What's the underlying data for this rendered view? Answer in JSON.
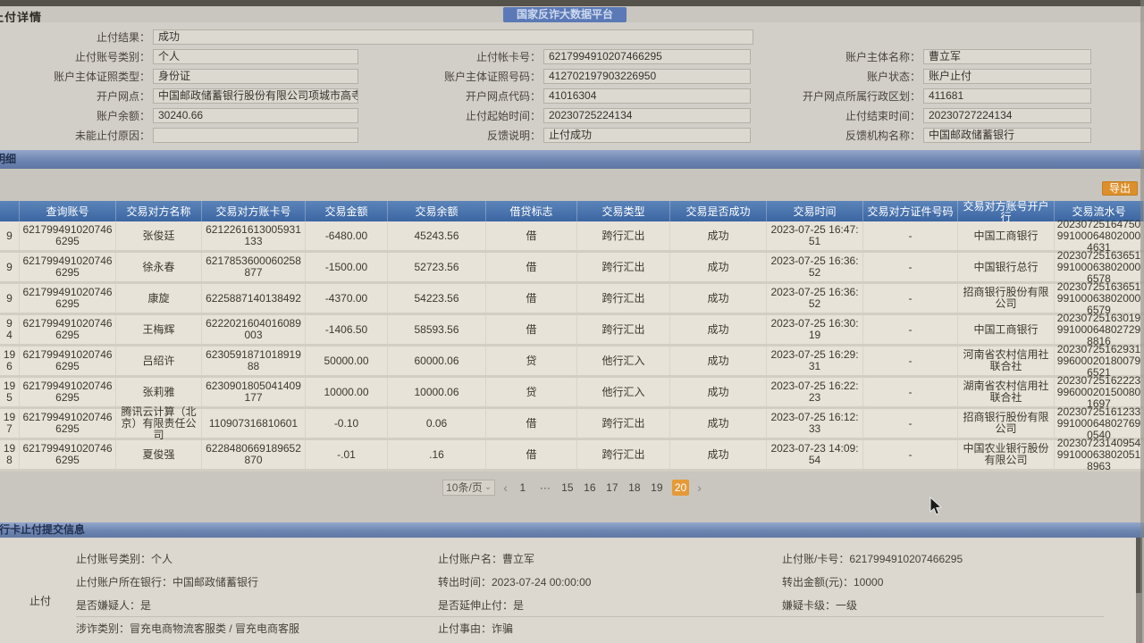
{
  "header": {
    "page_title": "止付详情",
    "platform_title": "国家反诈大数据平台"
  },
  "detail": {
    "rows": [
      [
        {
          "label": "止付结果：",
          "value": "成功"
        }
      ],
      [
        {
          "label": "止付账号类别：",
          "value": "个人"
        },
        {
          "label": "止付帐卡号：",
          "value": "6217994910207466295"
        },
        {
          "label": "账户主体名称：",
          "value": "曹立军"
        }
      ],
      [
        {
          "label": "账户主体证照类型：",
          "value": "身份证"
        },
        {
          "label": "账户主体证照号码：",
          "value": "412702197903226950"
        },
        {
          "label": "账户状态：",
          "value": "账户止付"
        }
      ],
      [
        {
          "label": "开户网点：",
          "value": "中国邮政储蓄银行股份有限公司项城市高寺..."
        },
        {
          "label": "开户网点代码：",
          "value": "41016304"
        },
        {
          "label": "开户网点所属行政区划：",
          "value": "411681"
        }
      ],
      [
        {
          "label": "账户余额：",
          "value": "30240.66"
        },
        {
          "label": "止付起始时间：",
          "value": "20230725224134"
        },
        {
          "label": "止付结束时间：",
          "value": "20230727224134"
        }
      ],
      [
        {
          "label": "未能止付原因：",
          "value": ""
        },
        {
          "label": "反馈说明：",
          "value": "止付成功"
        },
        {
          "label": "反馈机构名称：",
          "value": "中国邮政储蓄银行"
        }
      ]
    ]
  },
  "transactions": {
    "section_title": "明细",
    "export_label": "导出",
    "columns": [
      "查询账号",
      "交易对方名称",
      "交易对方账卡号",
      "交易金额",
      "交易余额",
      "借贷标志",
      "交易类型",
      "交易是否成功",
      "交易时间",
      "交易对方证件号码",
      "交易对方账号开户行",
      "交易流水号"
    ],
    "partial_ids": [
      "9",
      "9",
      "9",
      "9\n4",
      "19\n6",
      "19\n5",
      "19\n7",
      "19\n8"
    ],
    "rows": [
      [
        "6217994910207466295",
        "张俊廷",
        "6212261613005931133",
        "-6480.00",
        "45243.56",
        "借",
        "跨行汇出",
        "成功",
        "2023-07-25 16:47:51",
        "-",
        "中国工商银行",
        "20230725164750991000648020004631"
      ],
      [
        "6217994910207466295",
        "徐永春",
        "6217853600060258877",
        "-1500.00",
        "52723.56",
        "借",
        "跨行汇出",
        "成功",
        "2023-07-25 16:36:52",
        "-",
        "中国银行总行",
        "20230725163651991000638020006578"
      ],
      [
        "6217994910207466295",
        "康旋",
        "6225887140138492",
        "-4370.00",
        "54223.56",
        "借",
        "跨行汇出",
        "成功",
        "2023-07-25 16:36:52",
        "-",
        "招商银行股份有限公司",
        "20230725163651991000638020006579"
      ],
      [
        "6217994910207466295",
        "王梅辉",
        "6222021604016089003",
        "-1406.50",
        "58593.56",
        "借",
        "跨行汇出",
        "成功",
        "2023-07-25 16:30:19",
        "-",
        "中国工商银行",
        "20230725163019991000648027298816"
      ],
      [
        "6217994910207466295",
        "吕绍许",
        "623059187101891988",
        "50000.00",
        "60000.06",
        "贷",
        "他行汇入",
        "成功",
        "2023-07-25 16:29:31",
        "-",
        "河南省农村信用社联合社",
        "20230725162931996000201800796521"
      ],
      [
        "6217994910207466295",
        "张莉雅",
        "6230901805041409177",
        "10000.00",
        "10000.06",
        "贷",
        "他行汇入",
        "成功",
        "2023-07-25 16:22:23",
        "-",
        "湖南省农村信用社联合社",
        "20230725162223996000201500801697"
      ],
      [
        "6217994910207466295",
        "腾讯云计算（北京）有限责任公司",
        "110907316810601",
        "-0.10",
        "0.06",
        "借",
        "跨行汇出",
        "成功",
        "2023-07-25 16:12:33",
        "-",
        "招商银行股份有限公司",
        "20230725161233991000648027690540"
      ],
      [
        "6217994910207466295",
        "夏俊强",
        "6228480669189652870",
        "-.01",
        ".16",
        "借",
        "跨行汇出",
        "成功",
        "2023-07-23 14:09:54",
        "-",
        "中国农业银行股份有限公司",
        "20230723140954991000638020518963"
      ]
    ],
    "pagination": {
      "page_size_label": "10条/页",
      "prev": "‹",
      "next": "›",
      "pages": [
        "1",
        "···",
        "15",
        "16",
        "17",
        "18",
        "19",
        "20"
      ],
      "active_page": "20"
    }
  },
  "submission": {
    "section_title": "银行卡止付提交信息",
    "group_label": "止付",
    "rows": [
      [
        {
          "label": "止付账号类别",
          "value": "个人"
        },
        {
          "label": "止付账户名",
          "value": "曹立军"
        },
        {
          "label": "止付账/卡号",
          "value": "6217994910207466295"
        }
      ],
      [
        {
          "label": "止付账户所在银行",
          "value": "中国邮政储蓄银行"
        },
        {
          "label": "转出时间",
          "value": "2023-07-24 00:00:00"
        },
        {
          "label": "转出金额(元)",
          "value": "10000"
        }
      ],
      [
        {
          "label": "是否嫌疑人",
          "value": "是"
        },
        {
          "label": "是否延伸止付",
          "value": "是"
        },
        {
          "label": "嫌疑卡级",
          "value": "一级"
        }
      ],
      [
        {
          "label": "涉诈类别",
          "value": "冒充电商物流客服类 / 冒充电商客服"
        },
        {
          "label": "止付事由",
          "value": "诈骗"
        },
        null
      ]
    ]
  },
  "icons": {
    "chevron_down": "⌄"
  },
  "colors": {
    "accent_orange": "#dd8f2b",
    "active_page_orange": "#e59a38",
    "table_header_blue": "#3c66a2",
    "section_bar_blue": "#6d85b1",
    "platform_badge_blue": "#5b79b6"
  }
}
